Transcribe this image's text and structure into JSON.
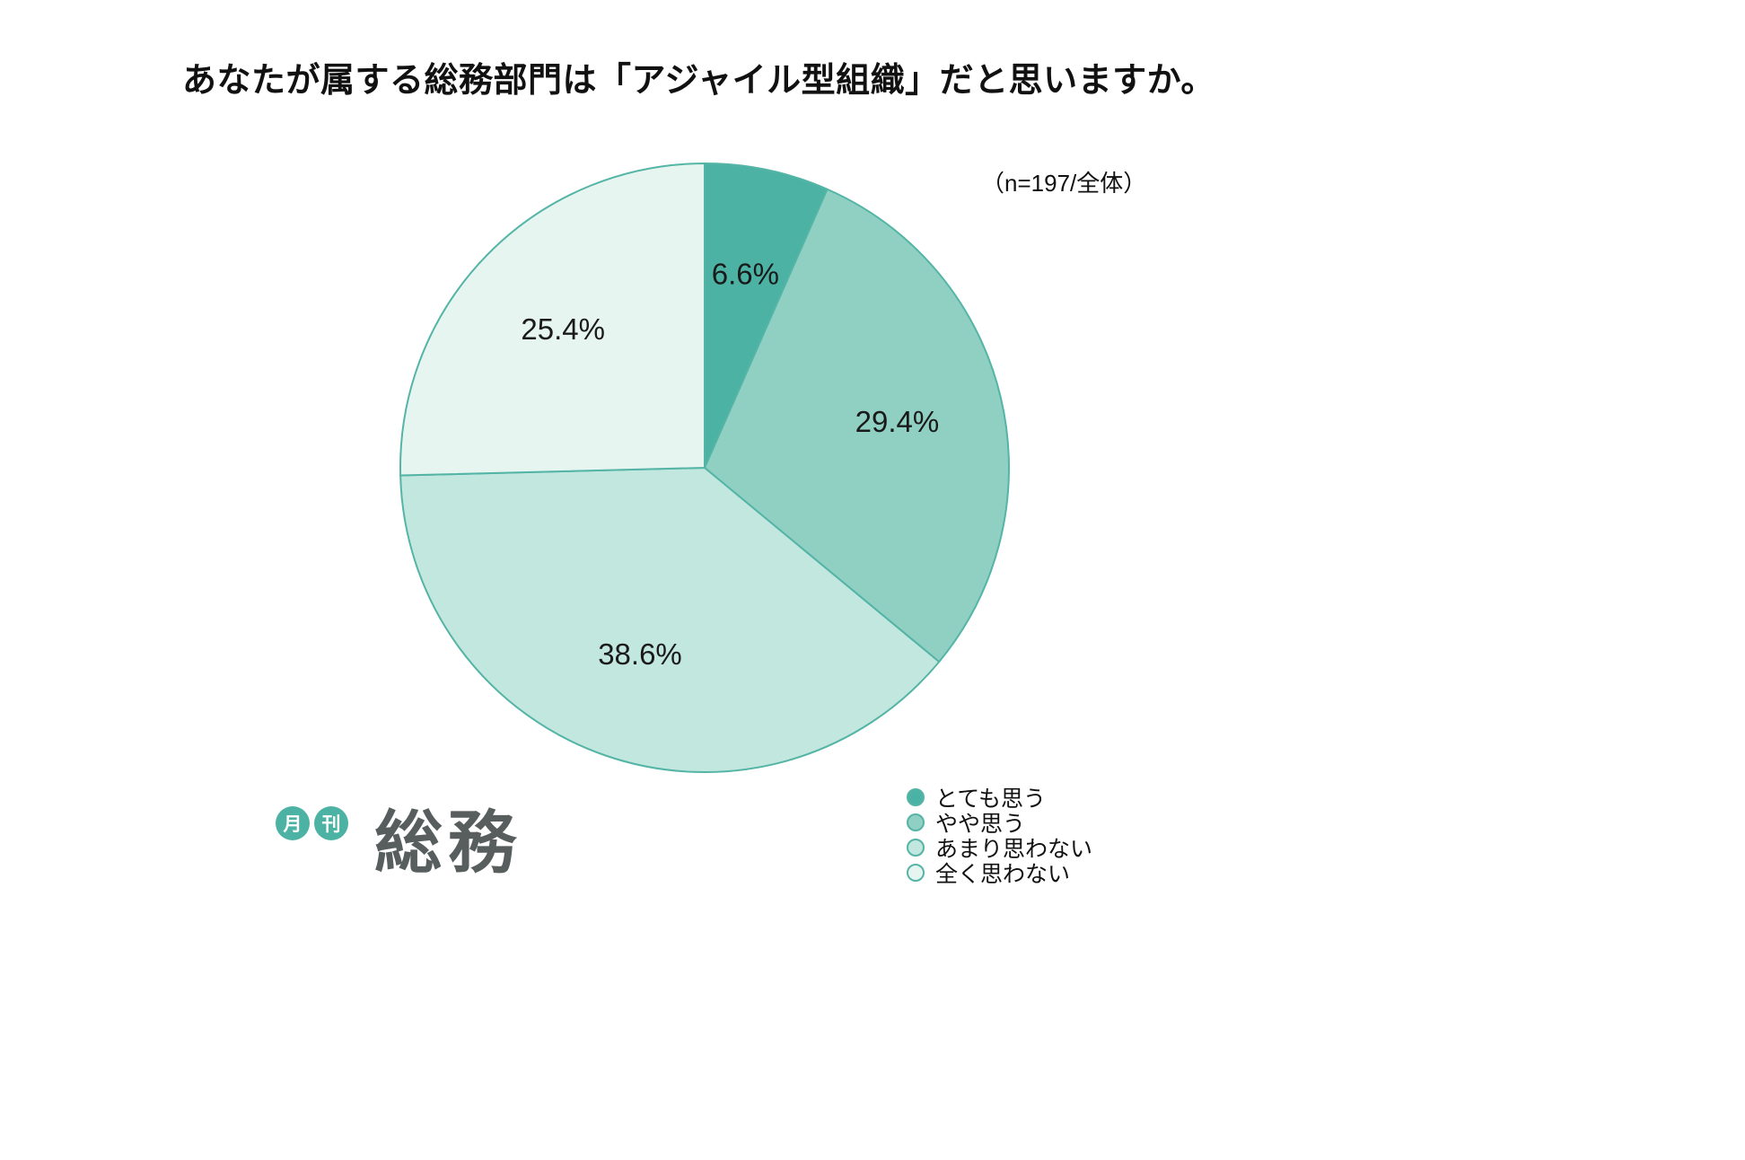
{
  "page": {
    "title": "あなたが属する総務部門は「アジャイル型組織」だと思いますか。",
    "sample_note": "（n=197/全体）"
  },
  "chart_data": {
    "type": "pie",
    "title": "あなたが属する総務部門は「アジャイル型組織」だと思いますか。",
    "sample_note": "（n=197/全体）",
    "start_angle_deg": -90,
    "direction": "clockwise",
    "labels": [
      "とても思う",
      "やや思う",
      "あまり思わない",
      "全く思わない"
    ],
    "values": [
      6.6,
      29.4,
      38.6,
      25.4
    ],
    "value_labels": [
      "6.6%",
      "29.4%",
      "38.6%",
      "25.4%"
    ],
    "colors": [
      "#4cb3a4",
      "#8fd0c2",
      "#c2e7de",
      "#e6f5f0"
    ],
    "stroke_color": "#54b4a6",
    "label_color": "#1a1a1a",
    "label_radius_fraction": 0.65,
    "legend_position": "bottom-right"
  },
  "legend": {
    "items": [
      {
        "label": "とても思う",
        "color": "#4cb3a4"
      },
      {
        "label": "やや思う",
        "color": "#8fd0c2"
      },
      {
        "label": "あまり思わない",
        "color": "#c2e7de"
      },
      {
        "label": "全く思わない",
        "color": "#e6f5f0"
      }
    ]
  },
  "logo": {
    "badge1": "月",
    "badge2": "刊",
    "wordmark": "総務",
    "badge_color": "#4cb3a4",
    "wordmark_color": "#585e5e"
  }
}
